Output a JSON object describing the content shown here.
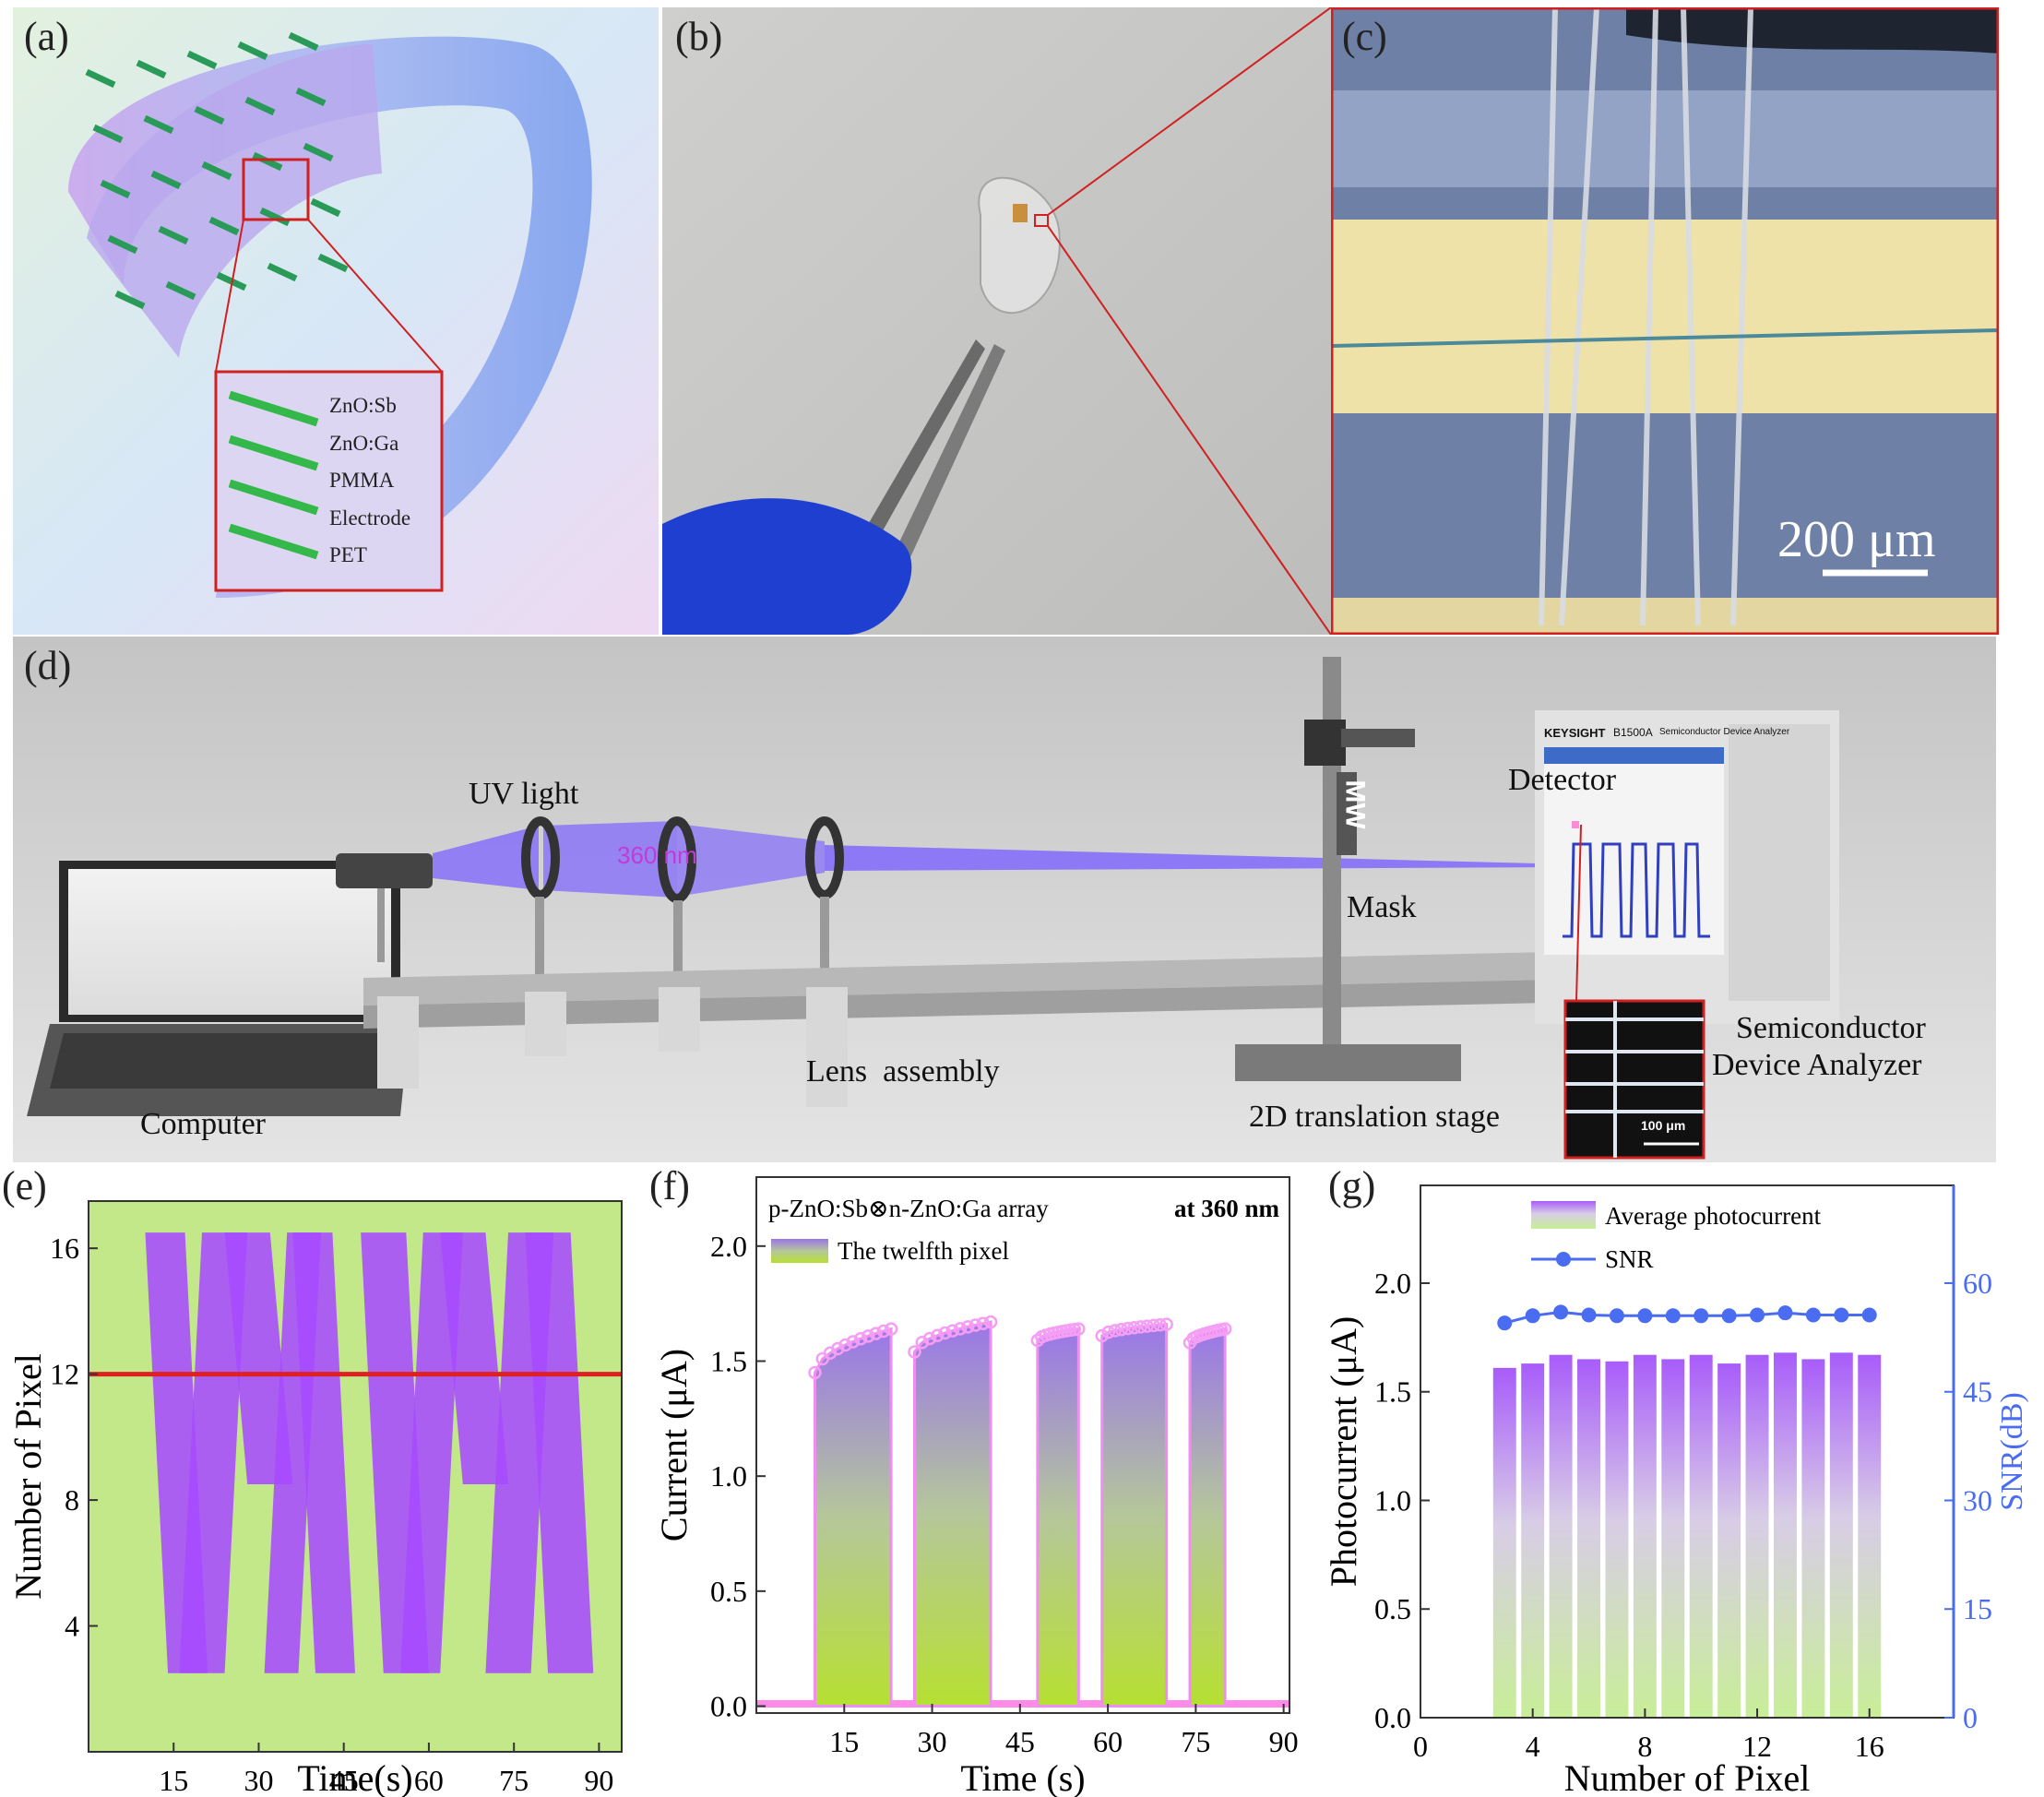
{
  "panels": {
    "a": {
      "label": "(a)",
      "layers": [
        "ZnO:Sb",
        "ZnO:Ga",
        "PMMA",
        "Electrode",
        "PET"
      ]
    },
    "b": {
      "label": "(b)"
    },
    "c": {
      "label": "(c)",
      "scalebar": "200 μm"
    },
    "d": {
      "label": "(d)",
      "uv_light": "UV light",
      "wavelength": "360 nm",
      "detector": "Detector",
      "mask": "Mask",
      "computer": "Computer",
      "lens": "Lens  assembly",
      "stage": "2D translation stage",
      "analyzer_line1": "Semiconductor",
      "analyzer_line2": "Device Analyzer",
      "brand": "KEYSIGHT",
      "model": "B1500A",
      "model_sub": "Semiconductor Device Analyzer",
      "inset_scale": "100 μm",
      "mask_letters": "MW"
    },
    "e": {
      "label": "(e)"
    },
    "f": {
      "label": "(f)"
    },
    "g": {
      "label": "(g)"
    }
  },
  "chart_data": [
    {
      "id": "e",
      "type": "heatmap",
      "xlabel": "Time(s)",
      "ylabel": "Number of Pixel",
      "xticks": [
        15,
        30,
        45,
        60,
        75,
        90
      ],
      "yticks": [
        4,
        8,
        12,
        16
      ],
      "xlim": [
        0,
        94
      ],
      "ylim": [
        0,
        17.5
      ],
      "pixels": [
        3,
        16
      ],
      "highlight_pixel": 12,
      "highlight_color": "#e02020",
      "pattern": "MW",
      "colors": {
        "background": "#c2e88a",
        "on": "#a64bff"
      }
    },
    {
      "id": "f",
      "type": "area",
      "title": "p-ZnO:Sb⊗n-ZnO:Ga array",
      "annotation": "at 360 nm",
      "legend": "The twelfth pixel",
      "xlabel": "Time (s)",
      "ylabel": "Current (μA)",
      "xticks": [
        15,
        30,
        45,
        60,
        75,
        90
      ],
      "yticks": [
        "0.0",
        "0.5",
        "1.0",
        "1.5",
        "2.0"
      ],
      "xlim": [
        0,
        91
      ],
      "ylim": [
        -0.03,
        2.3
      ],
      "pulses": [
        {
          "start": 10,
          "end": 23,
          "i0": 1.45,
          "i1": 1.64
        },
        {
          "start": 27,
          "end": 40,
          "i0": 1.54,
          "i1": 1.67
        },
        {
          "start": 48,
          "end": 55,
          "i0": 1.59,
          "i1": 1.64
        },
        {
          "start": 59,
          "end": 70,
          "i0": 1.61,
          "i1": 1.66
        },
        {
          "start": 74,
          "end": 80,
          "i0": 1.58,
          "i1": 1.64
        }
      ],
      "dark_current": 0.01
    },
    {
      "id": "g",
      "type": "bar",
      "xlabel": "Number of Pixel",
      "ylabel": "Photocurrent (μA)",
      "y2label": "SNR(dB)",
      "xticks": [
        0,
        4,
        8,
        12,
        16
      ],
      "yticks": [
        "0.0",
        "0.5",
        "1.0",
        "1.5",
        "2.0"
      ],
      "y2ticks": [
        0,
        15,
        30,
        45,
        60
      ],
      "xlim": [
        0,
        19
      ],
      "ylim": [
        0,
        2.45
      ],
      "y2lim": [
        0,
        73.5
      ],
      "categories": [
        3,
        4,
        5,
        6,
        7,
        8,
        9,
        10,
        11,
        12,
        13,
        14,
        15,
        16
      ],
      "series": [
        {
          "name": "Average photocurrent",
          "axis": "left",
          "values": [
            1.61,
            1.63,
            1.67,
            1.65,
            1.64,
            1.67,
            1.65,
            1.67,
            1.63,
            1.67,
            1.68,
            1.65,
            1.68,
            1.67
          ]
        },
        {
          "name": "SNR",
          "axis": "right",
          "color": "#4a6cf0",
          "values": [
            54.5,
            55.5,
            56.0,
            55.6,
            55.5,
            55.5,
            55.5,
            55.5,
            55.5,
            55.6,
            55.9,
            55.6,
            55.6,
            55.6
          ]
        }
      ]
    }
  ]
}
